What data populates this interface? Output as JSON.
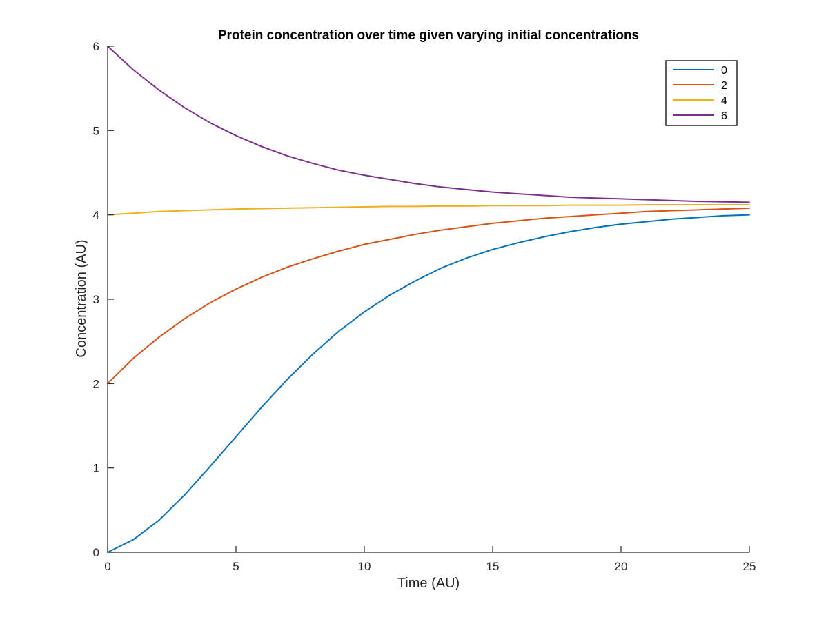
{
  "chart_data": {
    "type": "line",
    "title": "Protein concentration over time given varying initial concentrations",
    "xlabel": "Time (AU)",
    "ylabel": "Concentration (AU)",
    "xlim": [
      0,
      25
    ],
    "ylim": [
      0,
      6
    ],
    "xticks": [
      0,
      5,
      10,
      15,
      20,
      25
    ],
    "yticks": [
      0,
      1,
      2,
      3,
      4,
      5,
      6
    ],
    "grid": false,
    "legend_position": "top-right",
    "x": [
      0,
      1,
      2,
      3,
      4,
      5,
      6,
      7,
      8,
      9,
      10,
      11,
      12,
      13,
      14,
      15,
      16,
      17,
      18,
      19,
      20,
      21,
      22,
      23,
      24,
      25
    ],
    "series": [
      {
        "name": "0",
        "color": "#0072BD",
        "values": [
          0.0,
          0.15,
          0.38,
          0.68,
          1.02,
          1.37,
          1.72,
          2.05,
          2.35,
          2.62,
          2.85,
          3.05,
          3.22,
          3.37,
          3.49,
          3.59,
          3.67,
          3.74,
          3.8,
          3.85,
          3.89,
          3.92,
          3.95,
          3.97,
          3.99,
          4.0
        ]
      },
      {
        "name": "2",
        "color": "#D95319",
        "values": [
          2.0,
          2.3,
          2.55,
          2.77,
          2.96,
          3.12,
          3.26,
          3.38,
          3.48,
          3.57,
          3.65,
          3.71,
          3.77,
          3.82,
          3.86,
          3.9,
          3.93,
          3.96,
          3.98,
          4.0,
          4.02,
          4.04,
          4.05,
          4.06,
          4.07,
          4.08
        ]
      },
      {
        "name": "4",
        "color": "#EDB120",
        "values": [
          4.0,
          4.02,
          4.04,
          4.05,
          4.06,
          4.07,
          4.075,
          4.08,
          4.085,
          4.09,
          4.095,
          4.1,
          4.1,
          4.105,
          4.105,
          4.11,
          4.11,
          4.11,
          4.115,
          4.115,
          4.115,
          4.12,
          4.12,
          4.12,
          4.12,
          4.12
        ]
      },
      {
        "name": "6",
        "color": "#7E2F8E",
        "values": [
          6.0,
          5.72,
          5.48,
          5.27,
          5.09,
          4.94,
          4.81,
          4.7,
          4.61,
          4.53,
          4.47,
          4.42,
          4.37,
          4.33,
          4.3,
          4.27,
          4.25,
          4.23,
          4.21,
          4.2,
          4.19,
          4.18,
          4.17,
          4.16,
          4.155,
          4.15
        ]
      }
    ]
  }
}
